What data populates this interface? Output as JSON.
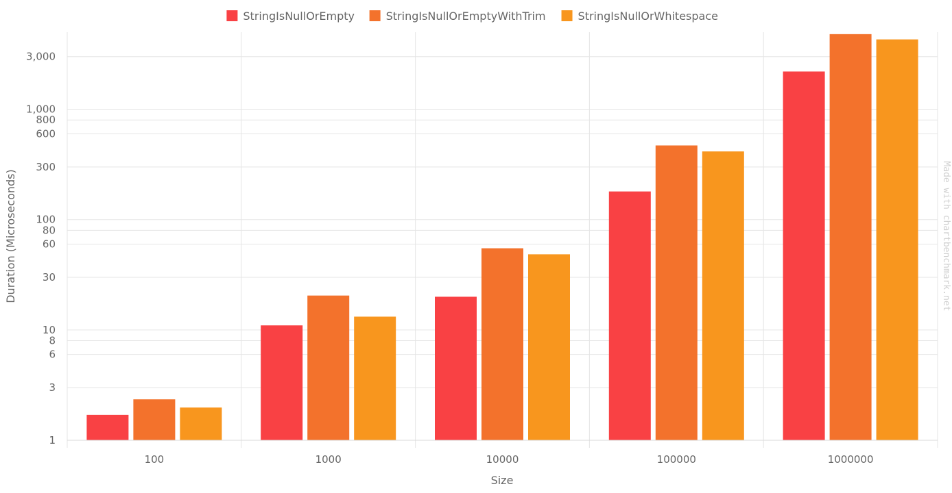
{
  "chart_data": {
    "type": "bar",
    "categories": [
      "100",
      "1000",
      "10000",
      "100000",
      "1000000"
    ],
    "series": [
      {
        "name": "StringIsNullOrEmpty",
        "color": "#f94144",
        "values": [
          1.7,
          11,
          20,
          180,
          2200
        ]
      },
      {
        "name": "StringIsNullOrEmptyWithTrim",
        "color": "#f3722c",
        "values": [
          2.35,
          20.5,
          55,
          470,
          4800
        ]
      },
      {
        "name": "StringIsNullOrWhitespace",
        "color": "#f8961e",
        "values": [
          1.98,
          13.2,
          48.5,
          415,
          4300
        ]
      }
    ],
    "xlabel": "Size",
    "ylabel": "Duration (Microseconds)",
    "yscale": "log",
    "ylim": [
      1,
      5000
    ],
    "yticks": [
      {
        "value": 1,
        "label": "1"
      },
      {
        "value": 3,
        "label": "3"
      },
      {
        "value": 6,
        "label": "6"
      },
      {
        "value": 8,
        "label": "8"
      },
      {
        "value": 10,
        "label": "10"
      },
      {
        "value": 30,
        "label": "30"
      },
      {
        "value": 60,
        "label": "60"
      },
      {
        "value": 80,
        "label": "80"
      },
      {
        "value": 100,
        "label": "100"
      },
      {
        "value": 300,
        "label": "300"
      },
      {
        "value": 600,
        "label": "600"
      },
      {
        "value": 800,
        "label": "800"
      },
      {
        "value": 1000,
        "label": "1,000"
      },
      {
        "value": 3000,
        "label": "3,000"
      }
    ],
    "grid": true,
    "legend": "top-center"
  },
  "watermark": "Made with chartbenchmark.net"
}
